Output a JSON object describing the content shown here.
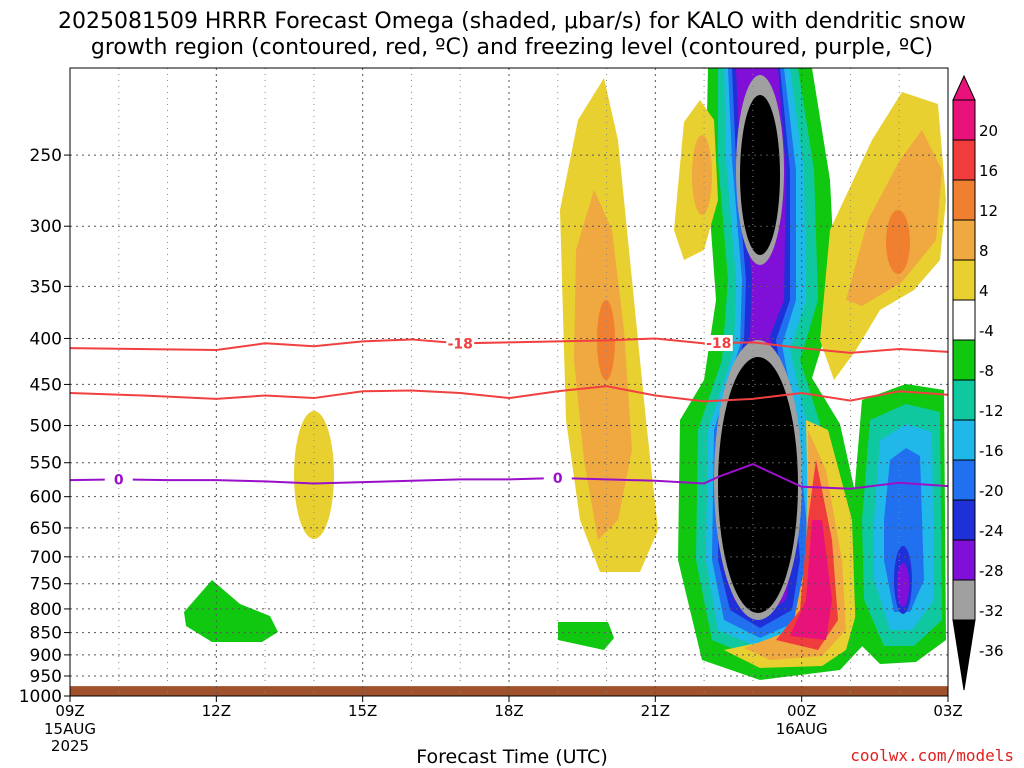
{
  "title_line1": "2025081509 HRRR Forecast Omega (shaded, μbar/s) for KALO with dendritic snow",
  "title_line2": "growth region (contoured, red, ºC) and freezing level (contoured, purple, ºC)",
  "credit": "coolwx.com/models",
  "chart_data": {
    "type": "heatmap",
    "xlabel": "Forecast Time (UTC)",
    "ylabel": "",
    "x_ticks": [
      {
        "hour": 0,
        "label": "09Z",
        "sub": [
          "15AUG",
          "2025"
        ]
      },
      {
        "hour": 3,
        "label": "12Z"
      },
      {
        "hour": 6,
        "label": "15Z"
      },
      {
        "hour": 9,
        "label": "18Z"
      },
      {
        "hour": 12,
        "label": "21Z"
      },
      {
        "hour": 15,
        "label": "00Z",
        "sub": [
          "16AUG"
        ]
      },
      {
        "hour": 18,
        "label": "03Z"
      }
    ],
    "xlim": [
      0,
      18
    ],
    "y_ticks": [
      250,
      300,
      350,
      400,
      450,
      500,
      550,
      600,
      650,
      700,
      750,
      800,
      850,
      900,
      950,
      1000
    ],
    "ylim": [
      200,
      1000
    ],
    "y_log_pressure": true,
    "surface_pressure": 975,
    "colorbar": {
      "labels": [
        "20",
        "16",
        "12",
        "8",
        "4",
        "-4",
        "-8",
        "-12",
        "-16",
        "-20",
        "-24",
        "-28",
        "-32",
        "-36"
      ],
      "colors": [
        "#e8127a",
        "#f03c3c",
        "#f08030",
        "#f0a840",
        "#e8d030",
        "#ffffff",
        "#10c810",
        "#10c8a0",
        "#20b8e8",
        "#2070f0",
        "#2030d8",
        "#8010d8",
        "#a0a0a0",
        "#000000"
      ]
    },
    "contours": [
      {
        "name": "dendritic-top",
        "label": "-18",
        "color": "#f04040",
        "x": [
          0,
          3,
          4,
          5,
          6,
          7,
          8,
          9,
          10,
          11,
          12,
          13,
          14,
          15,
          16,
          17,
          18
        ],
        "p": [
          410,
          412,
          405,
          408,
          403,
          401,
          405,
          404,
          403,
          402,
          400,
          405,
          404,
          410,
          415,
          411,
          414
        ],
        "label_hours": [
          8,
          13.3
        ]
      },
      {
        "name": "dendritic-bottom",
        "label": "",
        "color": "#f04040",
        "x": [
          0,
          1.5,
          3,
          4,
          5,
          6,
          7,
          8,
          9,
          10,
          11,
          12,
          13,
          14,
          15,
          16,
          17,
          18
        ],
        "p": [
          460,
          463,
          467,
          463,
          466,
          458,
          457,
          460,
          466,
          458,
          452,
          463,
          470,
          467,
          460,
          469,
          458,
          462
        ],
        "label_hours": []
      },
      {
        "name": "freezing-level",
        "label": "0",
        "color": "#9a10c8",
        "x": [
          0,
          1,
          2,
          3,
          4,
          5,
          6,
          7,
          8,
          9,
          10,
          11,
          12,
          13,
          13.3,
          14,
          15,
          16,
          17,
          18
        ],
        "p": [
          575,
          574,
          575,
          575,
          577,
          580,
          578,
          576,
          574,
          574,
          572,
          574,
          576,
          580,
          570,
          552,
          585,
          588,
          579,
          584
        ],
        "label_hours": [
          1,
          10
        ]
      }
    ]
  }
}
